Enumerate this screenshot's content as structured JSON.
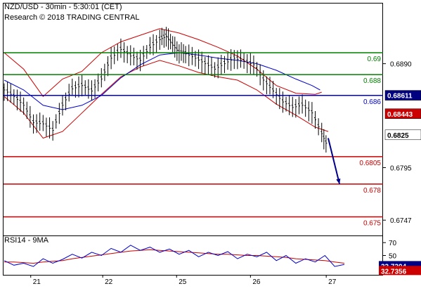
{
  "header": {
    "line1": "NZD/USD - 30min - 5:30:01 (CET)",
    "line2": "Research © 2018 TRADING CENTRAL"
  },
  "rsi_panel": {
    "title": "RSI14 - 9MA"
  },
  "colors": {
    "price": "#000000",
    "bollinger": "#cc0000",
    "ma_blue": "#0000cc",
    "resistance": "#008000",
    "pivot": "#0000cc",
    "support": "#cc0000",
    "arrow": "#00008b",
    "rsi_line": "#0000cc",
    "rsi_ma": "#cc0000",
    "axis_box_black": "#000000",
    "axis_box_blue": "#000080",
    "axis_box_red": "#cc0000"
  },
  "chart_data": {
    "type": "line",
    "title": "NZD/USD - 30min - 5:30:01 (CET)",
    "x_tick_labels": [
      "21",
      "22",
      "25",
      "26",
      "27"
    ],
    "y_tick_labels": [
      "0.6890",
      "0.6795",
      "0.6747"
    ],
    "ylim": [
      0.6733,
      0.6945
    ],
    "last_price": "0.6825",
    "horizontal_levels": [
      {
        "value": 0.69,
        "label": "0.69",
        "kind": "resistance"
      },
      {
        "value": 0.688,
        "label": "0.688",
        "kind": "resistance"
      },
      {
        "value": 0.6861,
        "label": "0.686",
        "kind": "pivot"
      },
      {
        "value": 0.6805,
        "label": "0.6805",
        "kind": "support"
      },
      {
        "value": 0.678,
        "label": "0.678",
        "kind": "support"
      },
      {
        "value": 0.675,
        "label": "0.675",
        "kind": "support"
      }
    ],
    "axis_boxes": [
      {
        "label": "0.68611",
        "value": 0.68611,
        "style": "blue"
      },
      {
        "label": "0.68443",
        "value": 0.68443,
        "style": "red"
      },
      {
        "label": "0.6825",
        "value": 0.6825,
        "style": "white"
      }
    ],
    "forecast_arrow": {
      "from": {
        "x": 200,
        "y": 0.6822
      },
      "to": {
        "x": 207,
        "y": 0.678
      }
    },
    "price_series": {
      "x": [
        0,
        6,
        12,
        18,
        24,
        30,
        36,
        42,
        48,
        54,
        60,
        66,
        72,
        78,
        84,
        90,
        96,
        100,
        104,
        108,
        112,
        118,
        124,
        130,
        136,
        142,
        148,
        154,
        160,
        166,
        172,
        178,
        184,
        190,
        196,
        200
      ],
      "close": [
        0.6866,
        0.686,
        0.6852,
        0.6836,
        0.6835,
        0.6829,
        0.6852,
        0.6867,
        0.687,
        0.6865,
        0.6876,
        0.6895,
        0.6903,
        0.6897,
        0.6893,
        0.6905,
        0.6912,
        0.6915,
        0.6907,
        0.69,
        0.6899,
        0.6895,
        0.689,
        0.6885,
        0.689,
        0.6895,
        0.6892,
        0.6889,
        0.6875,
        0.6865,
        0.6855,
        0.685,
        0.6852,
        0.6845,
        0.6826,
        0.6813
      ]
    },
    "bollinger_upper": {
      "x": [
        0,
        12,
        24,
        36,
        48,
        60,
        72,
        84,
        96,
        108,
        120,
        132,
        144,
        156,
        168,
        180,
        192,
        196
      ],
      "values": [
        0.69,
        0.6885,
        0.686,
        0.6876,
        0.6883,
        0.69,
        0.691,
        0.6916,
        0.6922,
        0.6918,
        0.6912,
        0.6905,
        0.6897,
        0.6885,
        0.687,
        0.6863,
        0.6862,
        0.6864
      ]
    },
    "bollinger_lower": {
      "x": [
        0,
        12,
        24,
        36,
        48,
        60,
        72,
        84,
        96,
        108,
        120,
        132,
        144,
        156,
        168,
        180,
        192,
        200
      ],
      "values": [
        0.686,
        0.6845,
        0.6822,
        0.6828,
        0.6845,
        0.6862,
        0.6878,
        0.6887,
        0.6893,
        0.6888,
        0.6882,
        0.6878,
        0.6875,
        0.6866,
        0.6853,
        0.6843,
        0.6832,
        0.6828
      ]
    },
    "ma_blue": {
      "x": [
        0,
        12,
        24,
        36,
        48,
        60,
        72,
        84,
        96,
        108,
        120,
        132,
        144,
        156,
        168,
        180,
        190,
        195
      ],
      "values": [
        0.6875,
        0.6866,
        0.6852,
        0.6848,
        0.6852,
        0.6861,
        0.6877,
        0.6889,
        0.6898,
        0.69,
        0.6898,
        0.6895,
        0.6893,
        0.689,
        0.6884,
        0.6876,
        0.687,
        0.6866
      ]
    },
    "rsi": {
      "ylim": [
        20,
        80
      ],
      "y_tick_labels": [
        "70",
        "50",
        "30"
      ],
      "axis_boxes": [
        {
          "label": "33.7304",
          "style": "blue"
        },
        {
          "label": "32.7356",
          "style": "red"
        }
      ],
      "rsi_values": [
        42,
        35,
        38,
        33,
        45,
        38,
        44,
        52,
        46,
        55,
        50,
        61,
        55,
        66,
        58,
        63,
        55,
        60,
        52,
        58,
        48,
        55,
        50,
        56,
        45,
        52,
        48,
        55,
        42,
        50,
        38,
        45,
        40,
        50,
        33,
        36
      ],
      "ma_values": [
        40,
        40,
        39,
        38,
        40,
        41,
        42,
        45,
        47,
        49,
        51,
        53,
        55,
        57,
        58,
        59,
        58,
        57,
        56,
        55,
        54,
        53,
        52,
        52,
        51,
        50,
        50,
        49,
        48,
        47,
        45,
        44,
        43,
        42,
        40,
        38
      ]
    }
  }
}
